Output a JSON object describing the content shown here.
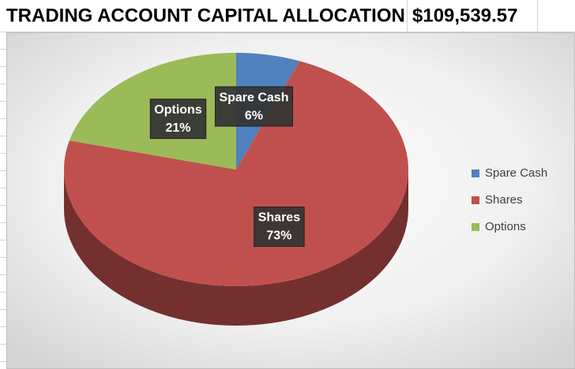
{
  "spreadsheet": {
    "title": "TRADING ACCOUNT CAPITAL ALLOCATION",
    "total": "$109,539.57"
  },
  "chart_data": {
    "type": "pie",
    "categories": [
      "Spare Cash",
      "Shares",
      "Options"
    ],
    "values": [
      6,
      73,
      21
    ],
    "value_labels": [
      "6%",
      "73%",
      "21%"
    ],
    "colors": [
      "#4f81bd",
      "#c0504d",
      "#9bbb59"
    ],
    "legend": "right"
  }
}
